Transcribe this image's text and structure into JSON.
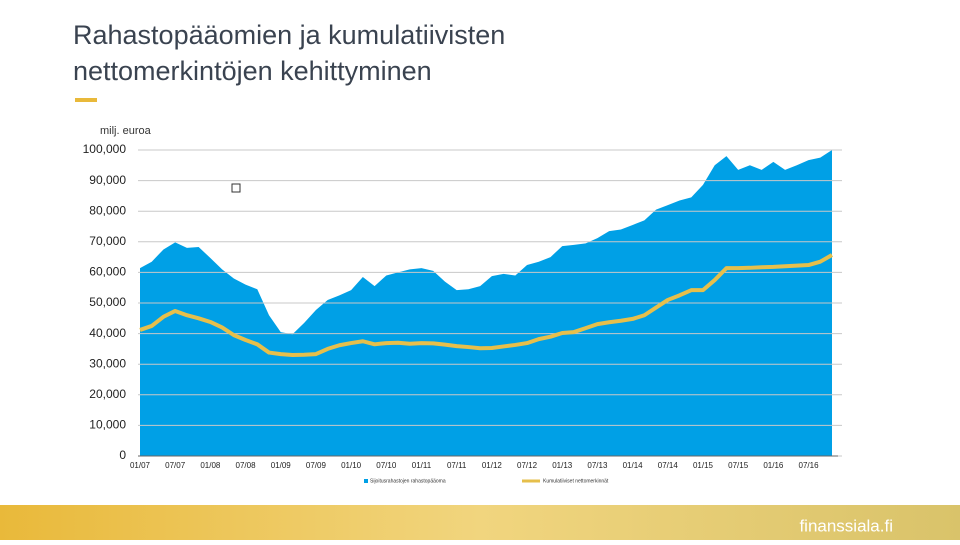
{
  "chart_data": {
    "type": "area-line",
    "title": "Rahastopääomien ja kumulatiivisten nettomerkintöjen kehittyminen",
    "y_axis_label": "milj. euroa",
    "footer": "finanssiala.fi",
    "categories": [
      "01/07",
      null,
      null,
      "07/07",
      null,
      null,
      "01/08",
      null,
      null,
      "07/08",
      null,
      null,
      "01/09",
      null,
      null,
      "07/09",
      null,
      null,
      "01/10",
      null,
      null,
      "07/10",
      null,
      null,
      "01/11",
      null,
      null,
      "07/11",
      null,
      null,
      "01/12",
      null,
      null,
      "07/12",
      null,
      null,
      "01/13",
      null,
      null,
      "07/13",
      null,
      null,
      "01/14",
      null,
      null,
      "07/14",
      null,
      null,
      "01/15",
      null,
      null,
      "07/15",
      null,
      null,
      "01/16",
      null,
      null,
      "07/16",
      null,
      null
    ],
    "ylim": [
      0,
      100000
    ],
    "yticks": [
      0,
      {
        "value": 10000,
        "label": "10,000"
      },
      {
        "value": 20000,
        "label": "20,000"
      },
      {
        "value": 30000,
        "label": "30,000"
      },
      {
        "value": 40000,
        "label": "40,000"
      },
      {
        "value": 50000,
        "label": "50,000"
      },
      {
        "value": 60000,
        "label": "60,000"
      },
      {
        "value": 70000,
        "label": "70,000"
      },
      {
        "value": 80000,
        "label": "80,000"
      },
      {
        "value": 90000,
        "label": "90,000"
      },
      {
        "value": 100000,
        "label": "100,000"
      }
    ],
    "grid": true,
    "series": [
      {
        "name": "Sijoitusrahastojen rahastopääoma",
        "kind": "area",
        "color": "#00a0e6",
        "values": [
          61400,
          63500,
          67500,
          69800,
          68000,
          68300,
          64700,
          61000,
          58000,
          56000,
          54500,
          46000,
          40500,
          39800,
          43500,
          47700,
          51000,
          52500,
          54200,
          58500,
          55500,
          59000,
          60000,
          61000,
          61400,
          60500,
          57000,
          54200,
          54500,
          55500,
          58800,
          59500,
          59000,
          62400,
          63500,
          65000,
          68600,
          69000,
          69500,
          71200,
          73500,
          74000,
          75500,
          77000,
          80500,
          82000,
          83500,
          84500,
          88600,
          95000,
          98000,
          93500,
          95000,
          93500,
          96100,
          93500,
          95000,
          96700,
          97500,
          100000
        ]
      },
      {
        "name": "Kumulatiiviset nettomerkinnät",
        "kind": "line",
        "color": "#e6bf4b",
        "values": [
          41200,
          42500,
          45500,
          47400,
          46000,
          45000,
          43800,
          42000,
          39500,
          37900,
          36500,
          33800,
          33300,
          33000,
          33100,
          33300,
          35000,
          36200,
          36900,
          37500,
          36500,
          36900,
          37000,
          36700,
          36900,
          36800,
          36400,
          35900,
          35600,
          35200,
          35300,
          35800,
          36300,
          36900,
          38200,
          39000,
          40200,
          40500,
          41800,
          43100,
          43700,
          44200,
          44800,
          46000,
          48500,
          51000,
          52500,
          54200,
          54200,
          57500,
          61400,
          61400,
          61500,
          61700,
          61800,
          62000,
          62200,
          62400,
          63500,
          65700
        ]
      }
    ]
  }
}
